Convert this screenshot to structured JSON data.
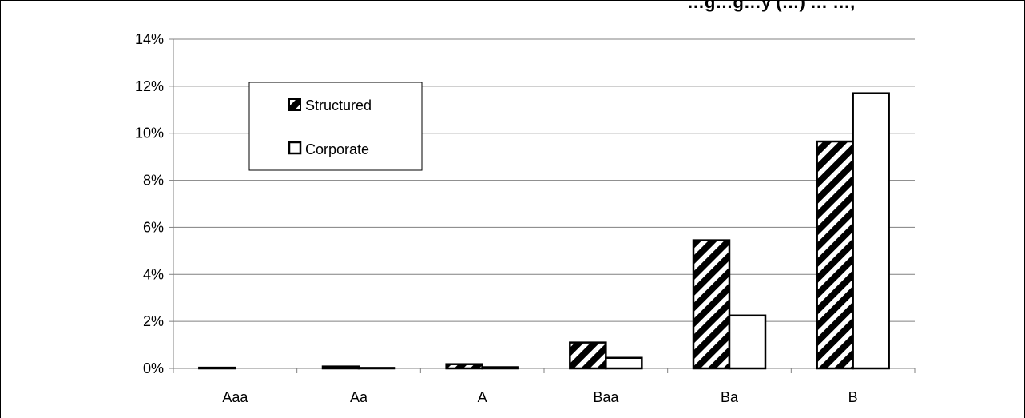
{
  "chart_data": {
    "type": "bar",
    "title": "…g…g…y (…) … …,",
    "categories": [
      "Aaa",
      "Aa",
      "A",
      "Baa",
      "Ba",
      "B"
    ],
    "series": [
      {
        "name": "Structured",
        "values": [
          0.03,
          0.08,
          0.18,
          1.1,
          5.45,
          9.65
        ],
        "pattern": "diagonal-stripes",
        "color": "#000000"
      },
      {
        "name": "Corporate",
        "values": [
          0.0,
          0.02,
          0.05,
          0.45,
          2.25,
          11.7
        ],
        "pattern": "solid",
        "color": "#ffffff"
      }
    ],
    "y_ticks": [
      "0%",
      "2%",
      "4%",
      "6%",
      "8%",
      "10%",
      "12%",
      "14%"
    ],
    "ylim": [
      0,
      14
    ],
    "y_unit": "%",
    "grid": true,
    "legend_position": "top-left"
  }
}
